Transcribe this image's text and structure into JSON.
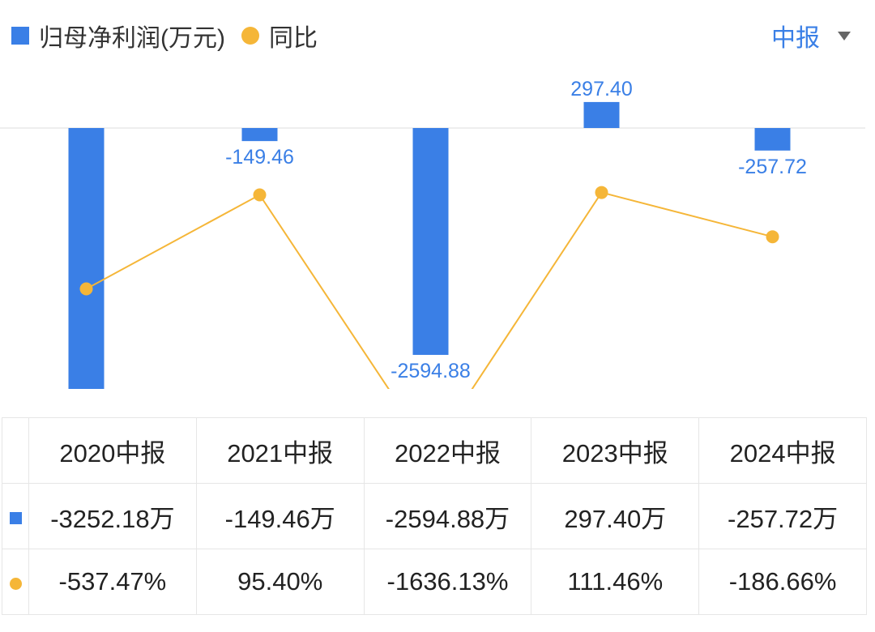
{
  "legend": {
    "bar_label": "归母净利润(万元)",
    "line_label": "同比"
  },
  "period_selector": {
    "value": "中报"
  },
  "colors": {
    "bar": "#3a7fe6",
    "line": "#f5b638",
    "label": "#3a7fe6",
    "positive": "#e05050",
    "negative": "#3aa070"
  },
  "chart_data": {
    "type": "bar",
    "categories": [
      "2020中报",
      "2021中报",
      "2022中报",
      "2023中报",
      "2024中报"
    ],
    "series": [
      {
        "name": "归母净利润(万元)",
        "type": "bar",
        "values": [
          -3252.18,
          -149.46,
          -2594.88,
          297.4,
          -257.72
        ],
        "labels": [
          "-3252.18",
          "-149.46",
          "-2594.88",
          "297.40",
          "-257.72"
        ]
      },
      {
        "name": "同比",
        "type": "line",
        "values": [
          -537.47,
          95.4,
          -1636.13,
          111.46,
          -186.66
        ]
      }
    ],
    "grid": false
  },
  "table": {
    "headers": [
      "2020中报",
      "2021中报",
      "2022中报",
      "2023中报",
      "2024中报"
    ],
    "profit": [
      "-3252.18万",
      "-149.46万",
      "-2594.88万",
      "297.40万",
      "-257.72万"
    ],
    "yoy": [
      "-537.47%",
      "95.40%",
      "-1636.13%",
      "111.46%",
      "-186.66%"
    ]
  }
}
